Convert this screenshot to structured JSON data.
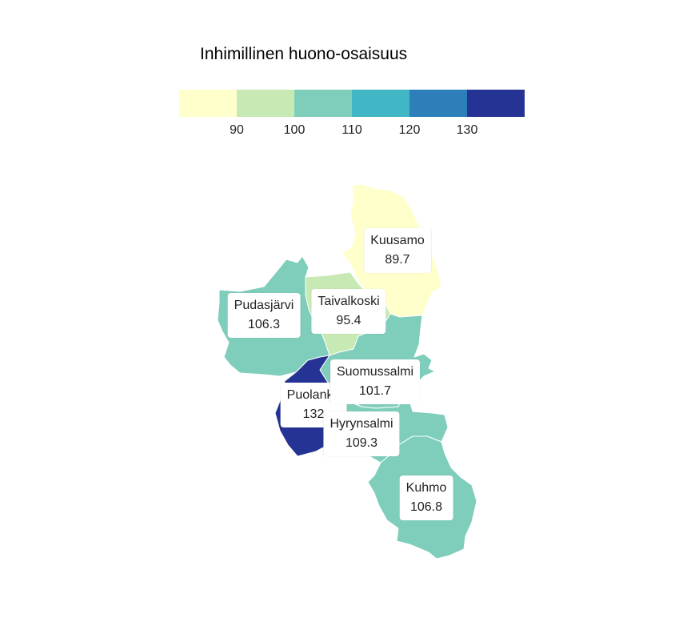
{
  "legend": {
    "title": "Inhimillinen huono-osaisuus",
    "colors": [
      "#ffffcc",
      "#c7e9b4",
      "#7fcdbb",
      "#41b6c4",
      "#2c7fb8",
      "#253494"
    ],
    "ticks": [
      "90",
      "100",
      "110",
      "120",
      "130"
    ]
  },
  "regions": [
    {
      "name": "Kuusamo",
      "value": "89.7",
      "color": "#ffffcc"
    },
    {
      "name": "Taivalkoski",
      "value": "95.4",
      "color": "#c7e9b4"
    },
    {
      "name": "Pudasjärvi",
      "value": "106.3",
      "color": "#7fcdbb"
    },
    {
      "name": "Suomussalmi",
      "value": "101.7",
      "color": "#7fcdbb"
    },
    {
      "name": "Puolanka",
      "value": "132",
      "color": "#253494"
    },
    {
      "name": "Hyrynsalmi",
      "value": "109.3",
      "color": "#7fcdbb"
    },
    {
      "name": "Kuhmo",
      "value": "106.8",
      "color": "#7fcdbb"
    }
  ]
}
